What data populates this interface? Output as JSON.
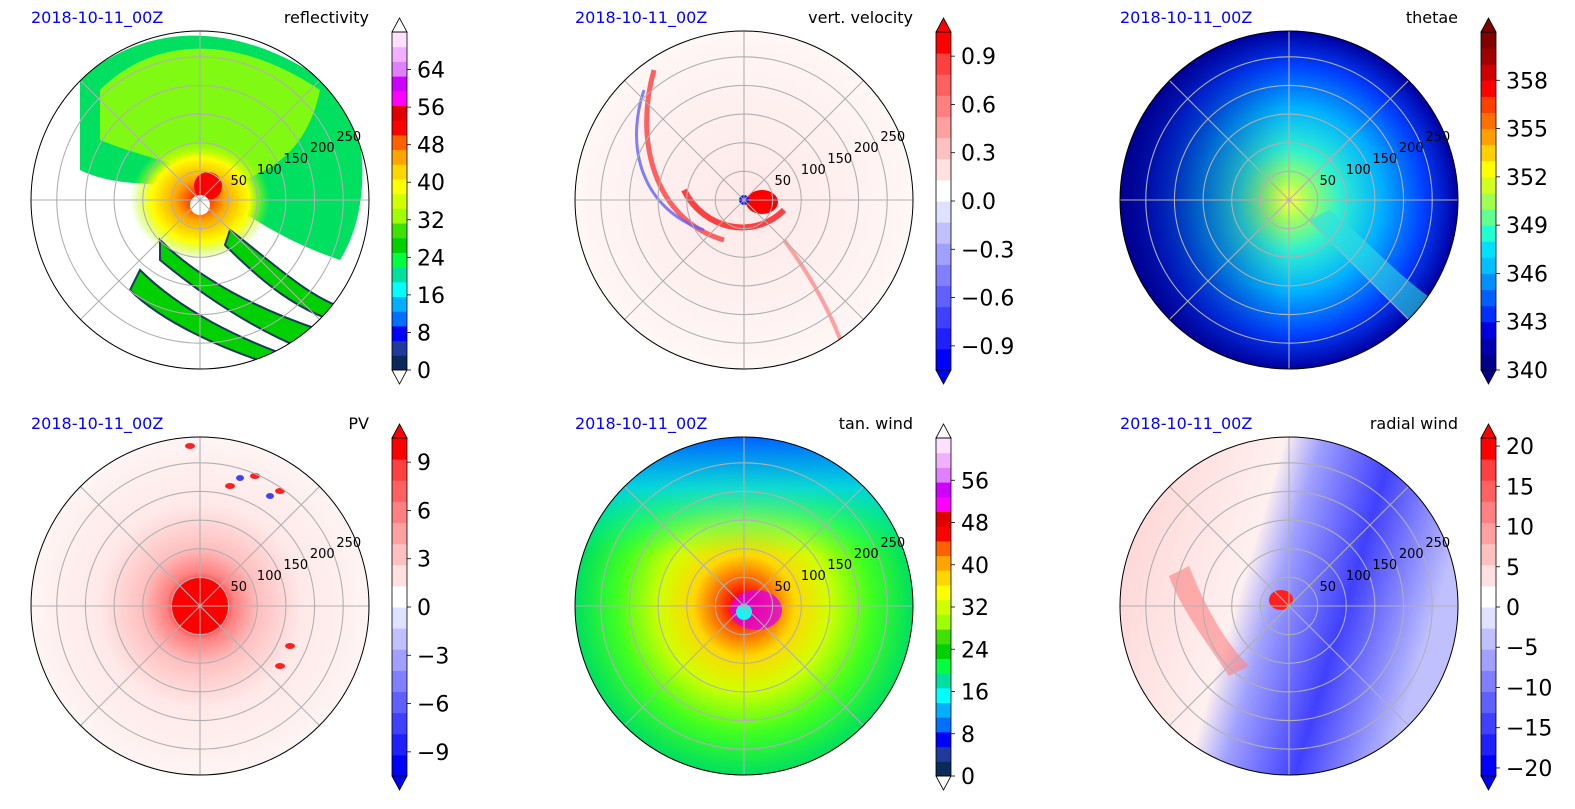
{
  "figure": {
    "panels": [
      {
        "date": "2018-10-11_00Z",
        "title": "reflectivity",
        "ring_labels": [
          "50",
          "100",
          "150",
          "200",
          "250"
        ],
        "colorbar": {
          "ticks": [
            "0",
            "8",
            "16",
            "24",
            "32",
            "40",
            "48",
            "56",
            "64"
          ],
          "tick_values": [
            0,
            8,
            16,
            24,
            32,
            40,
            48,
            56,
            64
          ],
          "range": [
            0,
            72
          ],
          "extend": "both",
          "colors": [
            "#0a2a5a",
            "#1f3a9a",
            "#0000ff",
            "#0070ff",
            "#00b0ff",
            "#00ffff",
            "#00e0a0",
            "#00ff40",
            "#00d000",
            "#40e000",
            "#a0ff00",
            "#d0ff00",
            "#ffff00",
            "#ffd700",
            "#ffa500",
            "#ff6000",
            "#ff0000",
            "#e00000",
            "#ff00ff",
            "#d000ff",
            "#e080ff",
            "#f0b0ff",
            "#ffe0ff"
          ],
          "extend_low_color": "#ffffff",
          "extend_high_color": "#ffffff"
        }
      },
      {
        "date": "2018-10-11_00Z",
        "title": "vert. velocity",
        "ring_labels": [
          "50",
          "100",
          "150",
          "200",
          "250"
        ],
        "colorbar": {
          "ticks": [
            "0.9",
            "0.6",
            "0.3",
            "0.0",
            "−0.3",
            "−0.6",
            "−0.9"
          ],
          "tick_values": [
            0.9,
            0.6,
            0.3,
            0.0,
            -0.3,
            -0.6,
            -0.9
          ],
          "range": [
            -1.05,
            1.05
          ],
          "extend": "both",
          "colors": [
            "#0000ff",
            "#2020ff",
            "#4040ff",
            "#6060ff",
            "#8080ff",
            "#a0a0ff",
            "#c0c0ff",
            "#e0e0ff",
            "#ffffff",
            "#ffe0e0",
            "#ffc0c0",
            "#ffa0a0",
            "#ff8080",
            "#ff6060",
            "#ff4040",
            "#ff0000"
          ],
          "extend_low_color": "#0000ff",
          "extend_high_color": "#ff0000"
        }
      },
      {
        "date": "2018-10-11_00Z",
        "title": "thetae",
        "ring_labels": [
          "50",
          "100",
          "150",
          "200",
          "250"
        ],
        "colorbar": {
          "ticks": [
            "358",
            "355",
            "352",
            "349",
            "346",
            "343",
            "340"
          ],
          "tick_values": [
            358,
            355,
            352,
            349,
            346,
            343,
            340
          ],
          "range": [
            340,
            361
          ],
          "extend": "both",
          "colors": [
            "#00008b",
            "#0000b0",
            "#0000e0",
            "#0030ff",
            "#0060ff",
            "#0090ff",
            "#00c0ff",
            "#00e0ff",
            "#20ffd0",
            "#60ff90",
            "#a0ff50",
            "#d0ff20",
            "#ffff00",
            "#ffd000",
            "#ffa000",
            "#ff7000",
            "#ff4000",
            "#ff0000",
            "#d00000",
            "#a00000",
            "#800000"
          ],
          "extend_low_color": "#00008b",
          "extend_high_color": "#800000"
        }
      },
      {
        "date": "2018-10-11_00Z",
        "title": "PV",
        "ring_labels": [
          "50",
          "100",
          "150",
          "200",
          "250"
        ],
        "colorbar": {
          "ticks": [
            "9",
            "6",
            "3",
            "0",
            "−3",
            "−6",
            "−9"
          ],
          "tick_values": [
            9,
            6,
            3,
            0,
            -3,
            -6,
            -9
          ],
          "range": [
            -10.5,
            10.5
          ],
          "extend": "both",
          "colors": [
            "#0000ff",
            "#2020ff",
            "#4040ff",
            "#6060ff",
            "#8080ff",
            "#a0a0ff",
            "#c0c0ff",
            "#e0e0ff",
            "#ffffff",
            "#ffe0e0",
            "#ffc0c0",
            "#ffa0a0",
            "#ff8080",
            "#ff6060",
            "#ff4040",
            "#ff0000"
          ],
          "extend_low_color": "#0000ff",
          "extend_high_color": "#ff0000"
        }
      },
      {
        "date": "2018-10-11_00Z",
        "title": "tan. wind",
        "ring_labels": [
          "50",
          "100",
          "150",
          "200",
          "250"
        ],
        "colorbar": {
          "ticks": [
            "0",
            "8",
            "16",
            "24",
            "32",
            "40",
            "48",
            "56"
          ],
          "tick_values": [
            0,
            8,
            16,
            24,
            32,
            40,
            48,
            56
          ],
          "range": [
            0,
            64
          ],
          "extend": "both",
          "colors": [
            "#0a2a5a",
            "#1f3a9a",
            "#0000ff",
            "#0070ff",
            "#00b0ff",
            "#00ffff",
            "#00e0a0",
            "#00ff40",
            "#00d000",
            "#40e000",
            "#a0ff00",
            "#d0ff00",
            "#ffff00",
            "#ffd700",
            "#ffa500",
            "#ff6000",
            "#ff0000",
            "#e00000",
            "#ff00ff",
            "#d000ff",
            "#e080ff",
            "#f0b0ff",
            "#ffe0ff"
          ],
          "extend_low_color": "#ffffff",
          "extend_high_color": "#ffffff"
        }
      },
      {
        "date": "2018-10-11_00Z",
        "title": "radial wind",
        "ring_labels": [
          "50",
          "100",
          "150",
          "200",
          "250"
        ],
        "colorbar": {
          "ticks": [
            "20",
            "15",
            "10",
            "5",
            "0",
            "−5",
            "−10",
            "−15",
            "−20"
          ],
          "tick_values": [
            20,
            15,
            10,
            5,
            0,
            -5,
            -10,
            -15,
            -20
          ],
          "range": [
            -21,
            21
          ],
          "extend": "both",
          "colors": [
            "#0000ff",
            "#2020ff",
            "#4040ff",
            "#6060ff",
            "#8080ff",
            "#a0a0ff",
            "#c0c0ff",
            "#e0e0ff",
            "#ffffff",
            "#ffe0e0",
            "#ffc0c0",
            "#ffa0a0",
            "#ff8080",
            "#ff6060",
            "#ff4040",
            "#ff0000"
          ],
          "extend_low_color": "#0000ff",
          "extend_high_color": "#ff0000"
        }
      }
    ]
  },
  "chart_data": [
    {
      "type": "heatmap",
      "projection": "polar",
      "title": "reflectivity",
      "date": "2018-10-11_00Z",
      "radial_ticks": [
        50,
        100,
        150,
        200,
        250
      ],
      "colorbar_ticks": [
        0,
        8,
        16,
        24,
        32,
        40,
        48,
        56,
        64
      ],
      "colorbar_extend": "both"
    },
    {
      "type": "heatmap",
      "projection": "polar",
      "title": "vert. velocity",
      "date": "2018-10-11_00Z",
      "radial_ticks": [
        50,
        100,
        150,
        200,
        250
      ],
      "colorbar_ticks": [
        -0.9,
        -0.6,
        -0.3,
        0.0,
        0.3,
        0.6,
        0.9
      ],
      "colorbar_extend": "both"
    },
    {
      "type": "heatmap",
      "projection": "polar",
      "title": "thetae",
      "date": "2018-10-11_00Z",
      "radial_ticks": [
        50,
        100,
        150,
        200,
        250
      ],
      "colorbar_ticks": [
        340,
        343,
        346,
        349,
        352,
        355,
        358
      ],
      "colorbar_extend": "both"
    },
    {
      "type": "heatmap",
      "projection": "polar",
      "title": "PV",
      "date": "2018-10-11_00Z",
      "radial_ticks": [
        50,
        100,
        150,
        200,
        250
      ],
      "colorbar_ticks": [
        -9,
        -6,
        -3,
        0,
        3,
        6,
        9
      ],
      "colorbar_extend": "both"
    },
    {
      "type": "heatmap",
      "projection": "polar",
      "title": "tan. wind",
      "date": "2018-10-11_00Z",
      "radial_ticks": [
        50,
        100,
        150,
        200,
        250
      ],
      "colorbar_ticks": [
        0,
        8,
        16,
        24,
        32,
        40,
        48,
        56
      ],
      "colorbar_extend": "both"
    },
    {
      "type": "heatmap",
      "projection": "polar",
      "title": "radial wind",
      "date": "2018-10-11_00Z",
      "radial_ticks": [
        50,
        100,
        150,
        200,
        250
      ],
      "colorbar_ticks": [
        -20,
        -15,
        -10,
        -5,
        0,
        5,
        10,
        15,
        20
      ],
      "colorbar_extend": "both"
    }
  ]
}
